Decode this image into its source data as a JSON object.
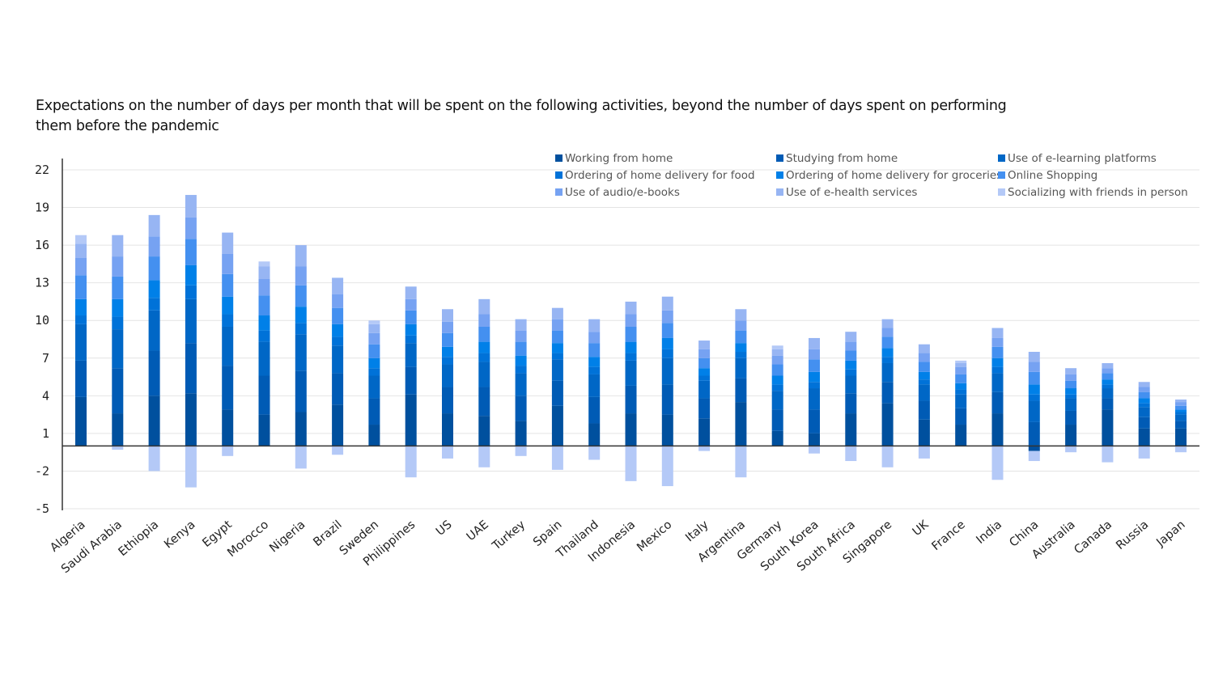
{
  "chart_data": {
    "type": "bar",
    "stacked": true,
    "title": "Expectations on the number of days per month that will be spent on the following activities, beyond the number of days spent on performing them before the pandemic",
    "xlabel": "",
    "ylabel": "",
    "ylim": [
      -5,
      22
    ],
    "yticks": [
      22,
      19,
      16,
      13,
      10,
      7,
      4,
      1,
      -2,
      -5
    ],
    "grid": true,
    "legend_position": "top-right",
    "categories": [
      "Algeria",
      "Saudi Arabia",
      "Ethiopia",
      "Kenya",
      "Egypt",
      "Morocco",
      "Nigeria",
      "Brazil",
      "Sweden",
      "Philippines",
      "US",
      "UAE",
      "Turkey",
      "Spain",
      "Thailand",
      "Indonesia",
      "Mexico",
      "Italy",
      "Argentina",
      "Germany",
      "South Korea",
      "South Africa",
      "Singapore",
      "UK",
      "France",
      "India",
      "China",
      "Australia",
      "Canada",
      "Russia",
      "Japan"
    ],
    "series": [
      {
        "name": "Working from home",
        "color": "#00509e",
        "values": [
          3.9,
          2.6,
          4.0,
          4.2,
          2.9,
          2.5,
          2.7,
          3.3,
          1.7,
          4.1,
          2.6,
          2.4,
          2.0,
          3.2,
          1.8,
          2.6,
          2.5,
          2.2,
          3.5,
          1.2,
          1.0,
          2.6,
          3.4,
          2.1,
          1.7,
          2.6,
          -0.4,
          1.7,
          2.9,
          1.4,
          1.4
        ]
      },
      {
        "name": "Studying from home",
        "color": "#005bb5",
        "values": [
          2.9,
          3.6,
          3.6,
          4.0,
          3.5,
          3.1,
          3.3,
          2.5,
          2.1,
          2.2,
          2.1,
          2.3,
          2.0,
          2.0,
          2.1,
          2.2,
          2.4,
          1.6,
          1.9,
          1.7,
          1.9,
          1.6,
          1.7,
          1.5,
          1.3,
          1.7,
          1.9,
          1.1,
          0.9,
          0.9,
          0.6
        ]
      },
      {
        "name": "Use of e-learning platforms",
        "color": "#0067c6",
        "values": [
          2.9,
          3.1,
          3.2,
          3.5,
          3.1,
          2.7,
          2.9,
          2.2,
          1.8,
          1.9,
          1.8,
          2.0,
          1.8,
          1.7,
          1.8,
          2.0,
          2.1,
          1.4,
          1.6,
          1.5,
          1.7,
          1.4,
          1.5,
          1.3,
          1.1,
          1.5,
          1.7,
          1.0,
          0.8,
          0.8,
          0.5
        ]
      },
      {
        "name": "Ordering of home delivery for food",
        "color": "#0072d8",
        "values": [
          0.7,
          1.0,
          1.0,
          1.1,
          1.0,
          0.9,
          0.9,
          0.7,
          0.6,
          0.6,
          0.6,
          0.7,
          0.6,
          0.5,
          0.6,
          0.6,
          0.7,
          0.4,
          0.5,
          0.5,
          0.5,
          0.5,
          0.5,
          0.4,
          0.4,
          0.5,
          0.5,
          0.3,
          0.3,
          0.3,
          0.2
        ]
      },
      {
        "name": "Ordering of home delivery for groceries",
        "color": "#0080e8",
        "values": [
          1.3,
          1.4,
          1.4,
          1.6,
          1.4,
          1.2,
          1.3,
          1.0,
          0.8,
          0.9,
          0.8,
          0.9,
          0.8,
          0.8,
          0.8,
          0.9,
          0.9,
          0.6,
          0.7,
          0.7,
          0.8,
          0.7,
          0.7,
          0.6,
          0.5,
          0.7,
          0.8,
          0.5,
          0.4,
          0.4,
          0.2
        ]
      },
      {
        "name": "Online Shopping",
        "color": "#4490f0",
        "values": [
          1.9,
          1.8,
          1.9,
          2.1,
          1.8,
          1.6,
          1.7,
          1.3,
          1.1,
          1.1,
          1.1,
          1.2,
          1.1,
          1.0,
          1.1,
          1.2,
          1.2,
          0.8,
          1.0,
          0.9,
          1.0,
          0.8,
          0.9,
          0.8,
          0.7,
          0.9,
          1.0,
          0.6,
          0.5,
          0.5,
          0.3
        ]
      },
      {
        "name": "Use of audio/e-books",
        "color": "#76a2f2",
        "values": [
          1.4,
          1.6,
          1.6,
          1.7,
          1.6,
          1.3,
          1.5,
          1.1,
          0.9,
          0.9,
          0.9,
          1.0,
          0.9,
          0.9,
          0.9,
          1.0,
          1.0,
          0.7,
          0.8,
          0.7,
          0.8,
          0.7,
          0.7,
          0.7,
          0.6,
          0.7,
          0.8,
          0.5,
          0.4,
          0.4,
          0.3
        ]
      },
      {
        "name": "Use of e-health services",
        "color": "#97b5f3",
        "values": [
          1.1,
          1.7,
          1.7,
          1.8,
          1.7,
          1.0,
          1.7,
          1.3,
          0.7,
          1.0,
          1.0,
          1.2,
          0.9,
          0.9,
          1.0,
          1.0,
          1.1,
          0.7,
          0.9,
          0.5,
          0.9,
          0.8,
          0.7,
          0.7,
          0.3,
          0.8,
          0.8,
          0.5,
          0.4,
          0.4,
          0.2
        ]
      },
      {
        "name": "Socializing with friends in person",
        "color": "#b4c9f7",
        "values": [
          0.7,
          -0.3,
          -2.0,
          -3.3,
          -0.8,
          0.4,
          -1.8,
          -0.7,
          0.3,
          -2.5,
          -1.0,
          -1.7,
          -0.8,
          -1.9,
          -1.1,
          -2.8,
          -3.2,
          -0.4,
          -2.5,
          0.3,
          -0.6,
          -1.2,
          -1.7,
          -1.0,
          0.2,
          -2.7,
          -0.8,
          -0.5,
          -1.3,
          -1.0,
          -0.5
        ]
      }
    ]
  }
}
